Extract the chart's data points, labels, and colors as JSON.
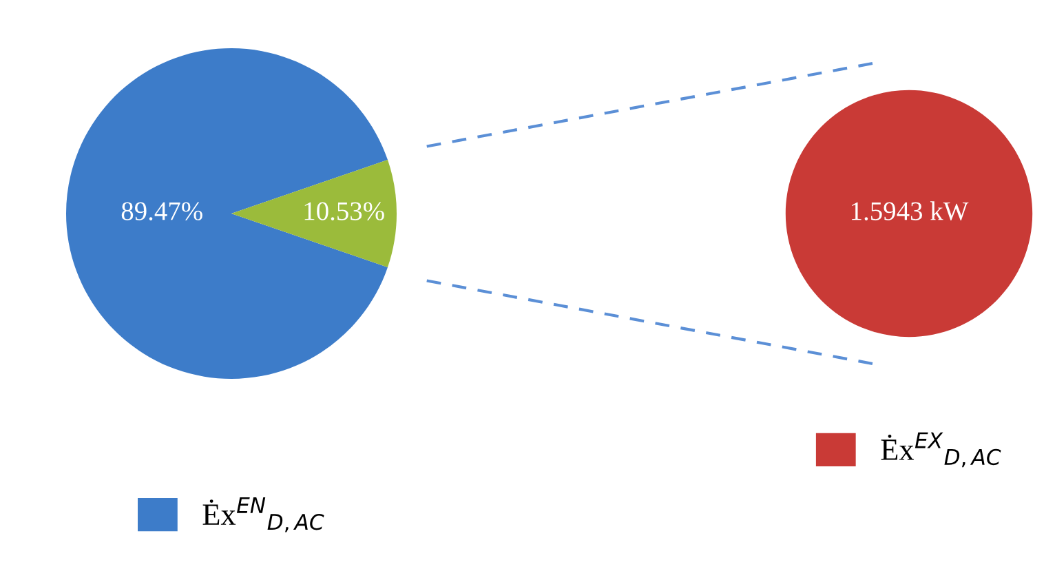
{
  "chart_data": [
    {
      "type": "pie",
      "categories": [
        "Ėx$^{EN}$$_{D,AC}$",
        null
      ],
      "values": [
        89.47,
        10.53
      ],
      "colors": [
        "#3d7cc9",
        "#9bbb3b"
      ],
      "value_labels": [
        "89.47%",
        "10.53%"
      ],
      "legend": "bottom"
    },
    {
      "type": "pie",
      "categories": [
        "Ėx$^{EX}$$_{D,AC}$"
      ],
      "values": [
        1.5943
      ],
      "colors": [
        "#c93a36"
      ],
      "value_labels": [
        "1.5943 kW"
      ],
      "legend": "bottom"
    }
  ]
}
